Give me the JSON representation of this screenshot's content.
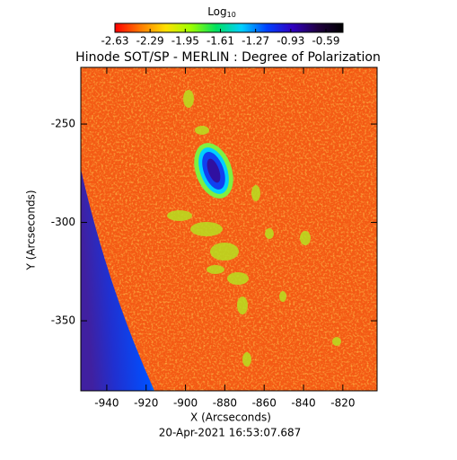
{
  "chart_data": {
    "type": "heatmap",
    "title": "Hinode SOT/SP - MERLIN : Degree of Polarization",
    "x_label": "X (Arcseconds)",
    "y_label": "Y (Arcseconds)",
    "timestamp": "20-Apr-2021 16:53:07.687",
    "colorbar": {
      "label": "Log",
      "label_subscript": "10",
      "lim": [
        -2.63,
        -0.59
      ],
      "ticks": [
        -2.63,
        -2.29,
        -1.95,
        -1.61,
        -1.27,
        -0.93,
        -0.59
      ],
      "colormap": [
        "#ff0000",
        "#ff7a00",
        "#ffe000",
        "#9cff00",
        "#00e060",
        "#00d0ff",
        "#0040ff",
        "#3000c0",
        "#200040",
        "#000000"
      ]
    },
    "xlim": [
      -953.2,
      -802.6
    ],
    "xticks": [
      -940,
      -920,
      -900,
      -880,
      -860,
      -840,
      -820
    ],
    "ylim": [
      -385.6,
      -221.2
    ],
    "yticks": [
      -250,
      -300,
      -350
    ]
  }
}
